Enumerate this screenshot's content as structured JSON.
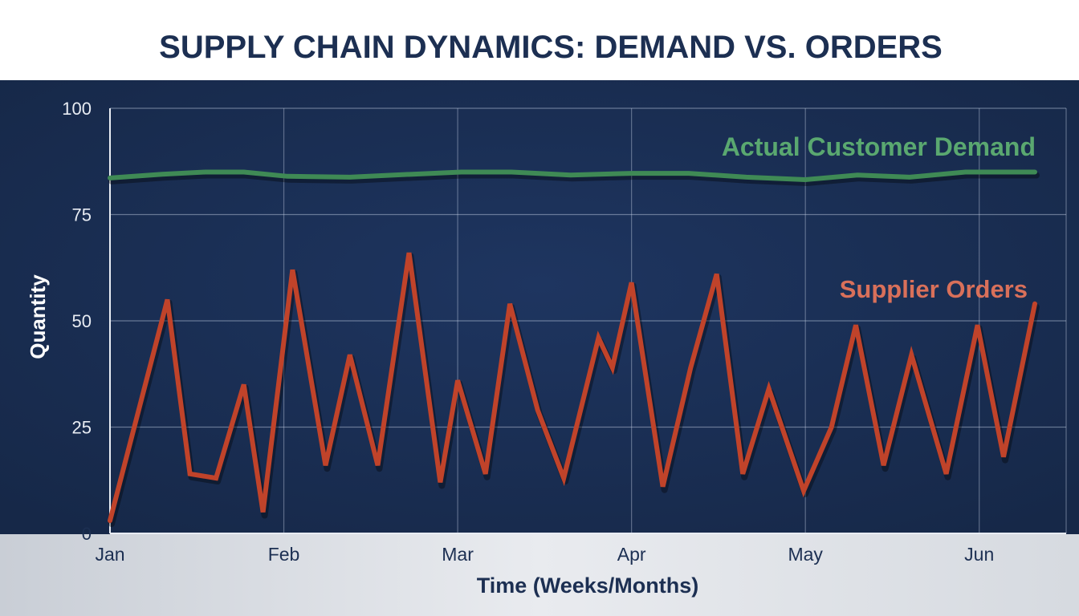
{
  "chart_data": {
    "type": "line",
    "title": "SUPPLY CHAIN DYNAMICS: DEMAND VS. ORDERS",
    "xlabel": "Time (Weeks/Months)",
    "ylabel": "Quantity",
    "x_tick_labels": [
      "Jan",
      "Feb",
      "Mar",
      "Apr",
      "May",
      "Jun"
    ],
    "x_unit": "months since start of Jan",
    "xlim": [
      0,
      5.5
    ],
    "ylim": [
      0,
      100
    ],
    "y_ticks": [
      0,
      25,
      50,
      75,
      100
    ],
    "grid": true,
    "series": [
      {
        "name": "Actual Customer Demand",
        "color": "#3f8a55",
        "label_color": "#5aa870",
        "x": [
          0,
          0.3,
          0.55,
          0.77,
          1.02,
          1.38,
          1.74,
          2.02,
          2.31,
          2.65,
          3.0,
          3.33,
          3.66,
          4.0,
          4.3,
          4.6,
          4.92,
          5.32
        ],
        "y": [
          83.6,
          84.5,
          85,
          85,
          84,
          83.8,
          84.5,
          85,
          85,
          84.3,
          84.7,
          84.7,
          83.8,
          83.2,
          84.3,
          83.8,
          85,
          85
        ]
      },
      {
        "name": "Supplier Orders",
        "color": "#c0432a",
        "label_color": "#d9705a",
        "x": [
          0,
          0.33,
          0.46,
          0.61,
          0.77,
          0.88,
          1.05,
          1.24,
          1.38,
          1.54,
          1.72,
          1.9,
          2.0,
          2.16,
          2.3,
          2.46,
          2.61,
          2.81,
          2.89,
          3.0,
          3.18,
          3.34,
          3.49,
          3.64,
          3.79,
          3.99,
          4.15,
          4.29,
          4.45,
          4.61,
          4.81,
          4.99,
          5.14,
          5.32
        ],
        "y": [
          3,
          55,
          14,
          13,
          35,
          5,
          62,
          16,
          42,
          16,
          66,
          12,
          36,
          14,
          54,
          29,
          13,
          46,
          39,
          59,
          11,
          39,
          61,
          14,
          34,
          10,
          25,
          49,
          16,
          42,
          14,
          49,
          18,
          54
        ]
      }
    ],
    "colors": {
      "title": "#1c2f52",
      "plot_background": "#1a2e52",
      "axis_text": "#1c2f52"
    }
  }
}
